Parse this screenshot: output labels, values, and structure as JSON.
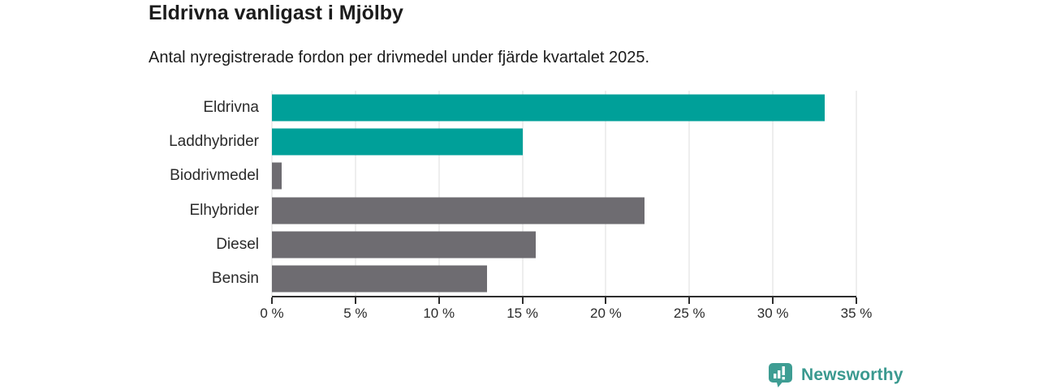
{
  "header": {
    "title": "Eldrivna vanligast i Mjölby",
    "subtitle": "Antal nyregistrerade fordon per drivmedel under fjärde kvartalet 2025."
  },
  "chart_data": {
    "type": "bar",
    "orientation": "horizontal",
    "title": "Eldrivna vanligast i Mjölby",
    "subtitle": "Antal nyregistrerade fordon per drivmedel under fjärde kvartalet 2025.",
    "categories": [
      "Eldrivna",
      "Laddhybrider",
      "Biodrivmedel",
      "Elhybrider",
      "Diesel",
      "Bensin"
    ],
    "values": [
      33.1,
      15.0,
      0.6,
      22.3,
      15.8,
      12.9
    ],
    "unit": "%",
    "bar_color_keys": [
      "teal",
      "teal",
      "gray",
      "gray",
      "gray",
      "gray"
    ],
    "xlim": [
      0,
      35
    ],
    "x_ticks": [
      0,
      5,
      10,
      15,
      20,
      25,
      30,
      35
    ],
    "x_tick_labels": [
      "0 %",
      "5 %",
      "10 %",
      "15 %",
      "20 %",
      "25 %",
      "30 %",
      "35 %"
    ],
    "grid": "vertical-gridlines-at-ticks",
    "legend": "none",
    "xlabel": "",
    "ylabel": ""
  },
  "colors": {
    "teal": "#00A099",
    "gray": "#6E6C71",
    "grid": "#DEDEDE",
    "axis": "#2E2E2E",
    "text": "#1C1C1C",
    "brand": "#3A998F"
  },
  "footer": {
    "brand": "Newsworthy",
    "logo_icon": "newsworthy-bar-chart-badge"
  }
}
